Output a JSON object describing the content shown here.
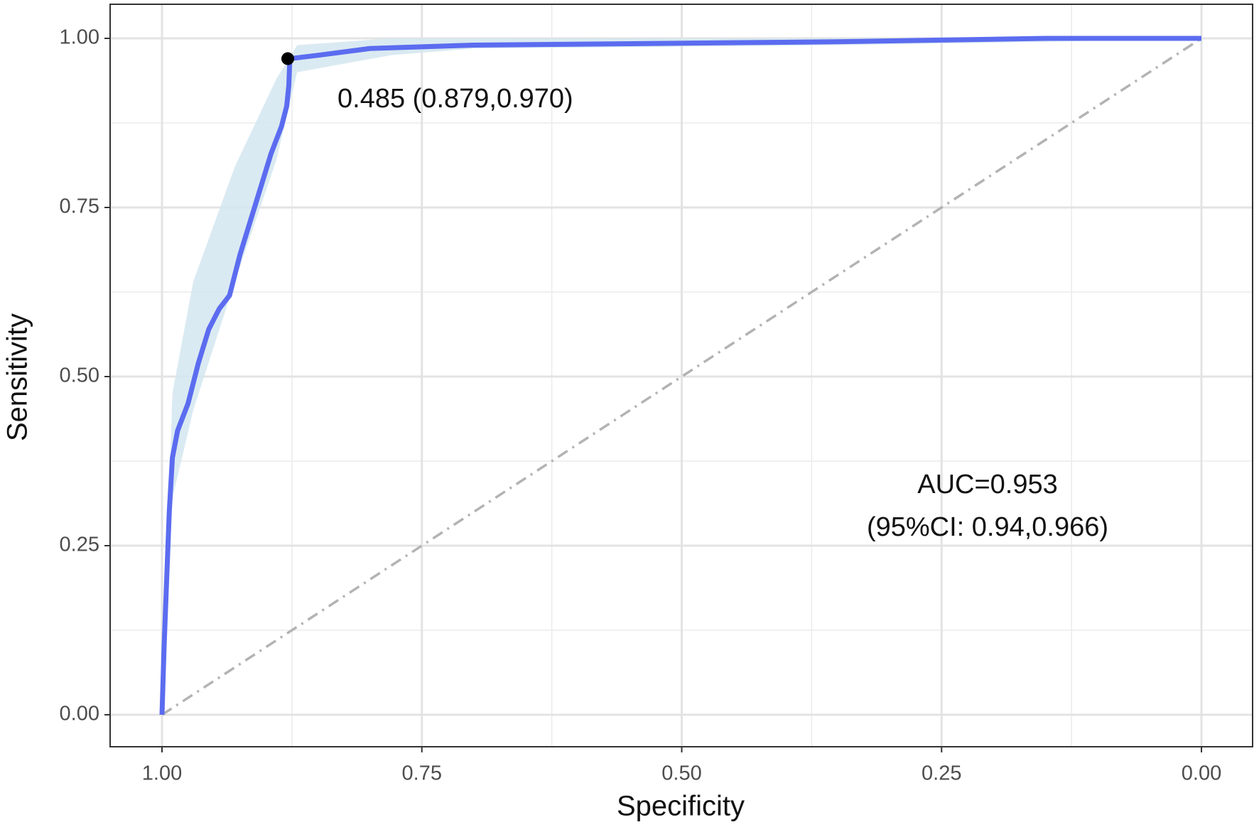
{
  "chart_data": {
    "type": "line",
    "x_label": "Specificity",
    "y_label": "Sensitivity",
    "xlim": [
      1,
      0
    ],
    "ylim": [
      0,
      1
    ],
    "xticks": [
      {
        "value": 1,
        "label": "1.00"
      },
      {
        "value": 0.75,
        "label": "0.75"
      },
      {
        "value": 0.5,
        "label": "0.50"
      },
      {
        "value": 0.25,
        "label": "0.25"
      },
      {
        "value": 0,
        "label": "0.00"
      }
    ],
    "yticks": [
      {
        "value": 0,
        "label": "0.00"
      },
      {
        "value": 0.25,
        "label": "0.25"
      },
      {
        "value": 0.5,
        "label": "0.50"
      },
      {
        "value": 0.75,
        "label": "0.75"
      },
      {
        "value": 1,
        "label": "1.00"
      }
    ],
    "minor_xticks": [
      0.875,
      0.625,
      0.375,
      0.125
    ],
    "minor_yticks": [
      0.125,
      0.375,
      0.625,
      0.875
    ],
    "grid": true,
    "series": [
      {
        "color": "#5b6cf0",
        "x": [
          1,
          0.998,
          0.996,
          0.993,
          0.99,
          0.985,
          0.975,
          0.965,
          0.955,
          0.945,
          0.935,
          0.925,
          0.915,
          0.905,
          0.895,
          0.885,
          0.88,
          0.878,
          0.877,
          0.85,
          0.8,
          0.7,
          0.35,
          0.15,
          0
        ],
        "values": [
          0,
          0.1,
          0.18,
          0.3,
          0.38,
          0.42,
          0.46,
          0.52,
          0.57,
          0.6,
          0.62,
          0.68,
          0.73,
          0.78,
          0.83,
          0.87,
          0.9,
          0.93,
          0.97,
          0.975,
          0.985,
          0.99,
          0.995,
          1,
          1
        ]
      }
    ],
    "ci_band": {
      "color": "#d3e6f0",
      "x": [
        1,
        0.99,
        0.97,
        0.93,
        0.89,
        0.87,
        0.78,
        0.7,
        0.35,
        0.15,
        0
      ],
      "upper": [
        0,
        0.475,
        0.64,
        0.81,
        0.94,
        0.99,
        1,
        1,
        1,
        1,
        1
      ],
      "lower": [
        0,
        0.32,
        0.45,
        0.64,
        0.82,
        0.95,
        0.975,
        0.985,
        0.99,
        0.995,
        1
      ]
    },
    "reference_line": {
      "color": "#b3b3b3",
      "x": [
        1,
        0
      ],
      "values": [
        0,
        1
      ]
    },
    "threshold_point": {
      "x": 0.879,
      "y": 0.97,
      "label": "0.485 (0.879,0.970)"
    },
    "annotations": [
      "AUC=0.953",
      "(95%CI: 0.94,0.966)"
    ]
  }
}
